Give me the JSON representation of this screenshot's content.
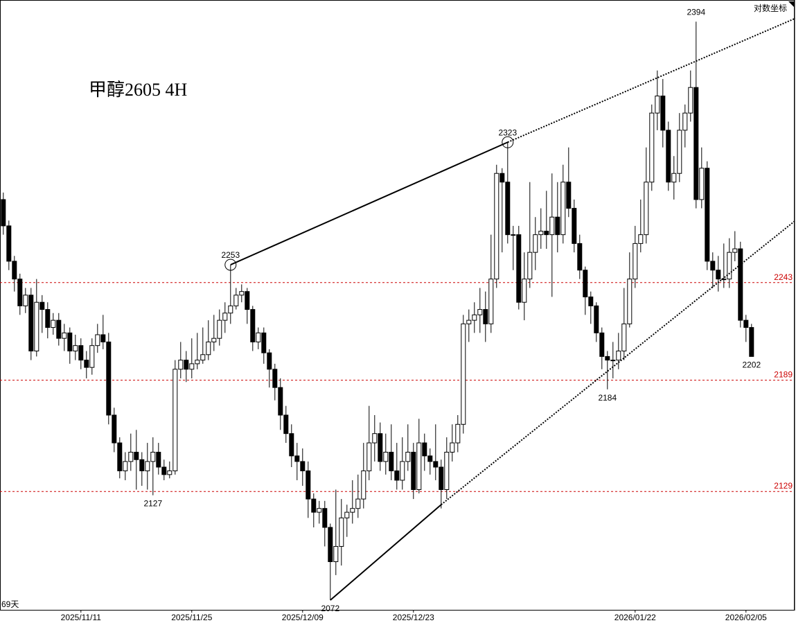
{
  "chart_data": {
    "type": "candlestick",
    "title": "甲醇2605 4H",
    "scale_label": "对数坐标",
    "period_label": "69天",
    "log_scale": true,
    "ylim": [
      2067,
      2407
    ],
    "xlim": [
      -0.6,
      142.9
    ],
    "up_color": "#ffffff",
    "down_color": "#000000",
    "level_color": "#cc0000",
    "xticks": [
      {
        "value": 14,
        "label": "2025/11/11"
      },
      {
        "value": 34,
        "label": "2025/11/25"
      },
      {
        "value": 54,
        "label": "2025/12/09"
      },
      {
        "value": 74,
        "label": "2025/12/23"
      },
      {
        "value": 114,
        "label": "2026/01/22"
      },
      {
        "value": 134,
        "label": "2026/02/05"
      }
    ],
    "levels": [
      2243,
      2189,
      2129
    ],
    "trendlines": [
      {
        "from": [
          41,
          2253
        ],
        "to": [
          91,
          2323
        ],
        "style": "solid"
      },
      {
        "from": [
          91,
          2323
        ],
        "to": [
          142.9,
          2396
        ],
        "style": "dotted"
      },
      {
        "from": [
          59,
          2072
        ],
        "to": [
          79,
          2122
        ],
        "style": "solid"
      },
      {
        "from": [
          79,
          2122
        ],
        "to": [
          142.9,
          2278
        ],
        "style": "dotted"
      }
    ],
    "ohlc": [
      [
        2290,
        2294,
        2270,
        2275
      ],
      [
        2275,
        2278,
        2250,
        2255
      ],
      [
        2255,
        2258,
        2238,
        2245
      ],
      [
        2245,
        2248,
        2225,
        2230
      ],
      [
        2230,
        2240,
        2226,
        2236
      ],
      [
        2236,
        2240,
        2200,
        2205
      ],
      [
        2205,
        2245,
        2202,
        2232
      ],
      [
        2232,
        2236,
        2215,
        2228
      ],
      [
        2228,
        2232,
        2212,
        2218
      ],
      [
        2218,
        2226,
        2214,
        2222
      ],
      [
        2222,
        2226,
        2208,
        2212
      ],
      [
        2212,
        2220,
        2205,
        2215
      ],
      [
        2215,
        2218,
        2198,
        2205
      ],
      [
        2205,
        2214,
        2200,
        2208
      ],
      [
        2208,
        2212,
        2195,
        2200
      ],
      [
        2200,
        2205,
        2190,
        2196
      ],
      [
        2196,
        2212,
        2192,
        2208
      ],
      [
        2208,
        2220,
        2204,
        2214
      ],
      [
        2214,
        2225,
        2206,
        2210
      ],
      [
        2210,
        2215,
        2165,
        2170
      ],
      [
        2170,
        2174,
        2150,
        2155
      ],
      [
        2155,
        2158,
        2136,
        2140
      ],
      [
        2140,
        2150,
        2135,
        2145
      ],
      [
        2145,
        2160,
        2140,
        2150
      ],
      [
        2150,
        2162,
        2130,
        2146
      ],
      [
        2146,
        2150,
        2132,
        2140
      ],
      [
        2140,
        2155,
        2130,
        2145
      ],
      [
        2145,
        2158,
        2127,
        2150
      ],
      [
        2150,
        2155,
        2138,
        2142
      ],
      [
        2142,
        2146,
        2135,
        2138
      ],
      [
        2138,
        2145,
        2136,
        2140
      ],
      [
        2140,
        2200,
        2138,
        2195
      ],
      [
        2195,
        2210,
        2190,
        2200
      ],
      [
        2200,
        2205,
        2188,
        2195
      ],
      [
        2195,
        2212,
        2190,
        2198
      ],
      [
        2198,
        2215,
        2195,
        2200
      ],
      [
        2200,
        2218,
        2198,
        2203
      ],
      [
        2203,
        2222,
        2200,
        2210
      ],
      [
        2210,
        2225,
        2205,
        2212
      ],
      [
        2212,
        2228,
        2208,
        2222
      ],
      [
        2222,
        2232,
        2215,
        2226
      ],
      [
        2226,
        2253,
        2220,
        2230
      ],
      [
        2230,
        2240,
        2228,
        2236
      ],
      [
        2236,
        2242,
        2232,
        2238
      ],
      [
        2238,
        2240,
        2220,
        2228
      ],
      [
        2228,
        2230,
        2205,
        2210
      ],
      [
        2210,
        2218,
        2206,
        2215
      ],
      [
        2215,
        2218,
        2198,
        2204
      ],
      [
        2204,
        2206,
        2185,
        2195
      ],
      [
        2195,
        2198,
        2178,
        2185
      ],
      [
        2185,
        2190,
        2162,
        2170
      ],
      [
        2170,
        2175,
        2155,
        2160
      ],
      [
        2160,
        2165,
        2142,
        2148
      ],
      [
        2148,
        2155,
        2135,
        2145
      ],
      [
        2145,
        2152,
        2132,
        2140
      ],
      [
        2140,
        2145,
        2115,
        2125
      ],
      [
        2125,
        2128,
        2110,
        2118
      ],
      [
        2118,
        2124,
        2112,
        2120
      ],
      [
        2120,
        2124,
        2100,
        2110
      ],
      [
        2110,
        2112,
        2072,
        2092
      ],
      [
        2092,
        2130,
        2085,
        2100
      ],
      [
        2100,
        2125,
        2090,
        2115
      ],
      [
        2115,
        2122,
        2105,
        2118
      ],
      [
        2118,
        2135,
        2112,
        2120
      ],
      [
        2120,
        2138,
        2115,
        2125
      ],
      [
        2125,
        2155,
        2120,
        2140
      ],
      [
        2140,
        2175,
        2135,
        2155
      ],
      [
        2155,
        2170,
        2145,
        2160
      ],
      [
        2160,
        2166,
        2140,
        2145
      ],
      [
        2145,
        2160,
        2138,
        2150
      ],
      [
        2150,
        2165,
        2135,
        2140
      ],
      [
        2140,
        2155,
        2130,
        2135
      ],
      [
        2135,
        2158,
        2130,
        2145
      ],
      [
        2145,
        2165,
        2140,
        2150
      ],
      [
        2150,
        2155,
        2125,
        2130
      ],
      [
        2130,
        2168,
        2128,
        2155
      ],
      [
        2155,
        2160,
        2140,
        2148
      ],
      [
        2148,
        2152,
        2138,
        2145
      ],
      [
        2145,
        2165,
        2135,
        2142
      ],
      [
        2142,
        2146,
        2120,
        2130
      ],
      [
        2130,
        2158,
        2125,
        2150
      ],
      [
        2150,
        2165,
        2145,
        2155
      ],
      [
        2155,
        2170,
        2150,
        2165
      ],
      [
        2165,
        2225,
        2160,
        2220
      ],
      [
        2220,
        2228,
        2210,
        2222
      ],
      [
        2222,
        2232,
        2215,
        2225
      ],
      [
        2225,
        2240,
        2215,
        2228
      ],
      [
        2228,
        2238,
        2210,
        2220
      ],
      [
        2220,
        2270,
        2215,
        2245
      ],
      [
        2245,
        2310,
        2240,
        2305
      ],
      [
        2305,
        2308,
        2260,
        2300
      ],
      [
        2300,
        2323,
        2265,
        2270
      ],
      [
        2270,
        2275,
        2250,
        2270
      ],
      [
        2270,
        2275,
        2228,
        2232
      ],
      [
        2232,
        2260,
        2222,
        2245
      ],
      [
        2245,
        2300,
        2240,
        2260
      ],
      [
        2260,
        2280,
        2250,
        2270
      ],
      [
        2270,
        2285,
        2262,
        2272
      ],
      [
        2272,
        2295,
        2262,
        2270
      ],
      [
        2270,
        2305,
        2235,
        2280
      ],
      [
        2280,
        2300,
        2260,
        2270
      ],
      [
        2270,
        2310,
        2265,
        2300
      ],
      [
        2300,
        2320,
        2280,
        2285
      ],
      [
        2285,
        2290,
        2260,
        2265
      ],
      [
        2265,
        2270,
        2245,
        2250
      ],
      [
        2250,
        2252,
        2225,
        2235
      ],
      [
        2235,
        2238,
        2220,
        2230
      ],
      [
        2230,
        2232,
        2210,
        2215
      ],
      [
        2215,
        2218,
        2195,
        2202
      ],
      [
        2202,
        2205,
        2184,
        2200
      ],
      [
        2200,
        2210,
        2190,
        2200
      ],
      [
        2200,
        2215,
        2195,
        2205
      ],
      [
        2205,
        2240,
        2200,
        2220
      ],
      [
        2220,
        2260,
        2218,
        2245
      ],
      [
        2245,
        2275,
        2240,
        2265
      ],
      [
        2265,
        2290,
        2260,
        2270
      ],
      [
        2270,
        2320,
        2265,
        2300
      ],
      [
        2300,
        2345,
        2295,
        2340
      ],
      [
        2340,
        2365,
        2330,
        2350
      ],
      [
        2350,
        2360,
        2320,
        2330
      ],
      [
        2330,
        2335,
        2295,
        2300
      ],
      [
        2300,
        2315,
        2290,
        2305
      ],
      [
        2305,
        2340,
        2300,
        2330
      ],
      [
        2330,
        2345,
        2320,
        2340
      ],
      [
        2340,
        2365,
        2335,
        2355
      ],
      [
        2355,
        2394,
        2285,
        2290
      ],
      [
        2290,
        2320,
        2285,
        2308
      ],
      [
        2308,
        2312,
        2250,
        2255
      ],
      [
        2255,
        2260,
        2240,
        2250
      ],
      [
        2250,
        2258,
        2238,
        2245
      ],
      [
        2245,
        2265,
        2240,
        2245
      ],
      [
        2245,
        2268,
        2240,
        2260
      ],
      [
        2260,
        2272,
        2255,
        2262
      ],
      [
        2262,
        2266,
        2218,
        2222
      ],
      [
        2222,
        2225,
        2210,
        2218
      ],
      [
        2218,
        2220,
        2202,
        2202
      ]
    ]
  }
}
